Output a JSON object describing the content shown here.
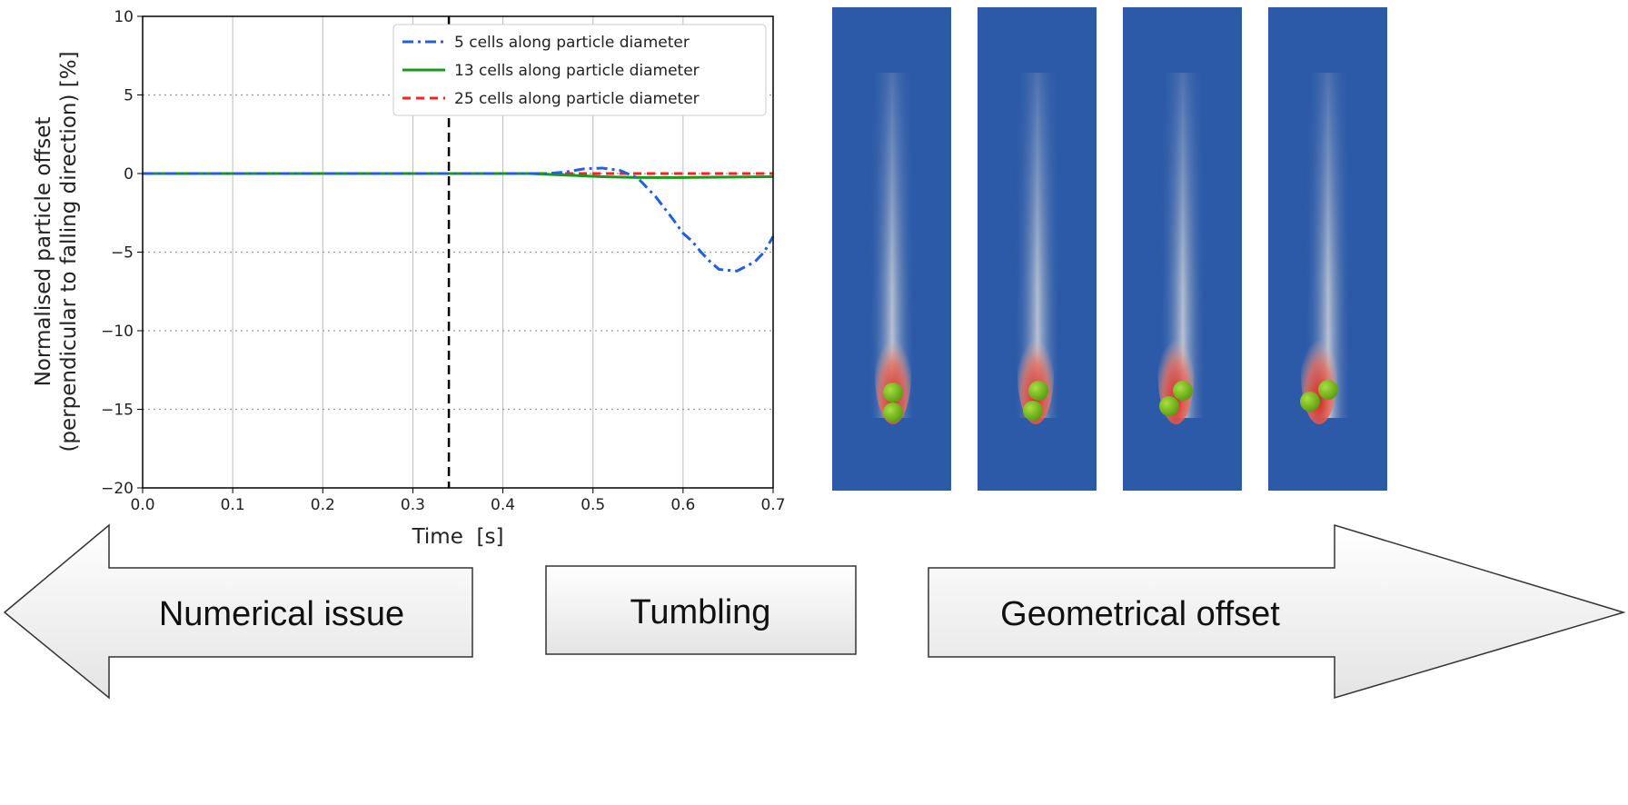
{
  "chart_data": {
    "type": "line",
    "xlabel": "Time  [s]",
    "ylabel": [
      "Normalised particle offset",
      "(perpendicular to falling direction) [%]"
    ],
    "xlim": [
      0.0,
      0.7
    ],
    "ylim": [
      -20,
      10
    ],
    "xticks": [
      "0.0",
      "0.1",
      "0.2",
      "0.3",
      "0.4",
      "0.5",
      "0.6",
      "0.7"
    ],
    "yticks": [
      "10",
      "5",
      "0",
      "−5",
      "−10",
      "−15",
      "−20"
    ],
    "xtick_values": [
      0,
      0.1,
      0.2,
      0.3,
      0.4,
      0.5,
      0.6,
      0.7
    ],
    "ytick_values": [
      10,
      5,
      0,
      -5,
      -10,
      -15,
      -20
    ],
    "grid": true,
    "legend_position": "top-right",
    "vline_x": 0.34,
    "series": [
      {
        "name": "5 cells along particle diameter",
        "color": "#1f5fe0",
        "style": "dashdot",
        "x": [
          0,
          0.45,
          0.47,
          0.49,
          0.51,
          0.53,
          0.55,
          0.57,
          0.59,
          0.6,
          0.61,
          0.62,
          0.63,
          0.64,
          0.66,
          0.68,
          0.69,
          0.7
        ],
        "y": [
          0,
          0,
          0.1,
          0.3,
          0.35,
          0.2,
          -0.3,
          -1.5,
          -3.0,
          -3.8,
          -4.3,
          -5.0,
          -5.6,
          -6.1,
          -6.2,
          -5.6,
          -5.0,
          -4.0
        ]
      },
      {
        "name": "13 cells along particle diameter",
        "color": "#1a9a1a",
        "style": "solid",
        "x": [
          0,
          0.43,
          0.47,
          0.51,
          0.55,
          0.6,
          0.7
        ],
        "y": [
          0,
          0,
          -0.1,
          -0.2,
          -0.25,
          -0.25,
          -0.2
        ]
      },
      {
        "name": "25 cells along particle diameter",
        "color": "#ff2020",
        "style": "dashed",
        "x": [
          0,
          0.7
        ],
        "y": [
          0,
          0
        ]
      }
    ]
  },
  "arrows": {
    "left": "Numerical issue",
    "middle": "Tumbling",
    "right": "Geometrical offset"
  },
  "colors": {
    "panel_bg": "#2c5aa8",
    "particle": "#7cc61e",
    "wake": "#d8261e"
  }
}
